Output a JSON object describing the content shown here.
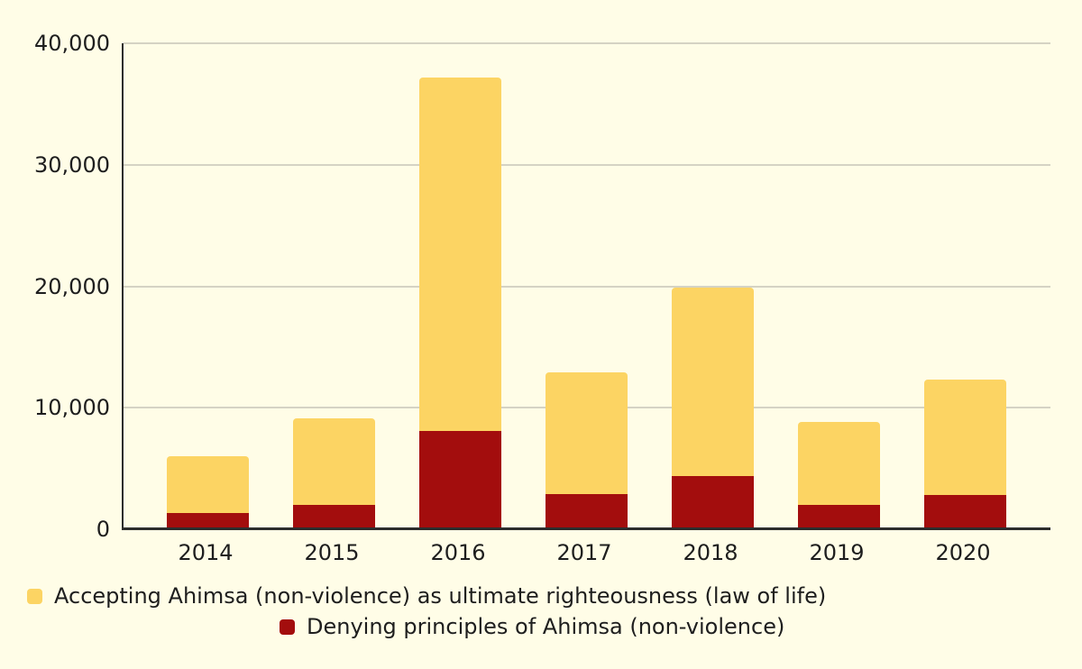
{
  "chart_data": {
    "type": "bar",
    "stacked": true,
    "title": "",
    "xlabel": "",
    "ylabel": "",
    "categories": [
      "2014",
      "2015",
      "2016",
      "2017",
      "2018",
      "2019",
      "2020"
    ],
    "series": [
      {
        "name": "Accepting Ahimsa (non-violence) as ultimate righteousness (law of life)",
        "color": "#FCD463",
        "stack": "top",
        "values": [
          4700,
          7100,
          29100,
          10000,
          15500,
          6800,
          9500
        ]
      },
      {
        "name": "Denying principles of Ahimsa (non-violence)",
        "color": "#A30D0D",
        "stack": "bottom",
        "values": [
          1300,
          2000,
          8100,
          2900,
          4400,
          2000,
          2800
        ]
      }
    ],
    "ylim": [
      0,
      40000
    ],
    "y_ticks": [
      {
        "label": "0",
        "value": 0
      },
      {
        "label": "10,000",
        "value": 10000
      },
      {
        "label": "20,000",
        "value": 20000
      },
      {
        "label": "30,000",
        "value": 30000
      },
      {
        "label": "40,000",
        "value": 40000
      }
    ],
    "grid": true,
    "legend_position": "bottom"
  },
  "legend": {
    "items": [
      {
        "label": "Accepting Ahimsa (non-violence) as ultimate righteousness (law of life)",
        "color": "#FCD463"
      },
      {
        "label": "Denying principles of Ahimsa (non-violence)",
        "color": "#A30D0D"
      }
    ]
  },
  "colors": {
    "background": "#FFFDE7",
    "accepting_yellow": "#FCD463",
    "denying_red": "#A30D0D",
    "gridline": "#D5D3C4",
    "axis": "#2D2D2D",
    "text": "#1E1E1E"
  }
}
